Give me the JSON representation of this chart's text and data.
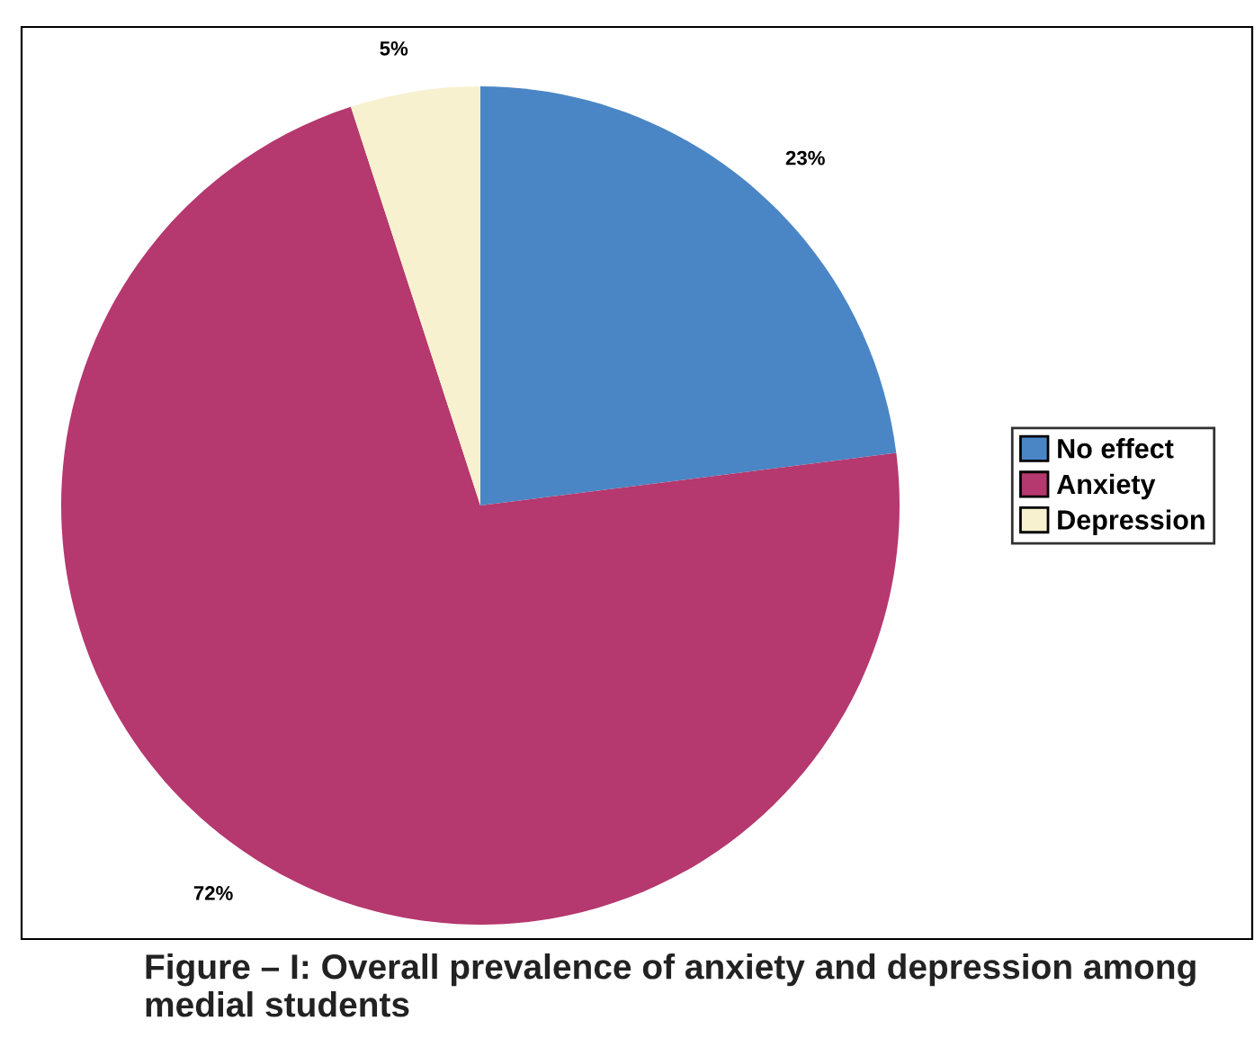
{
  "chart_data": {
    "type": "pie",
    "categories": [
      "No effect",
      "Anxiety",
      "Depression"
    ],
    "values": [
      23,
      72,
      5
    ],
    "colors": [
      "#4a86c5",
      "#b5386e",
      "#f8f1d0"
    ],
    "value_labels": [
      "23%",
      "72%",
      "5%"
    ],
    "legend": "right",
    "annotations": [
      "Figure – I: Overall prevalence of anxiety and depression among medial students"
    ]
  }
}
